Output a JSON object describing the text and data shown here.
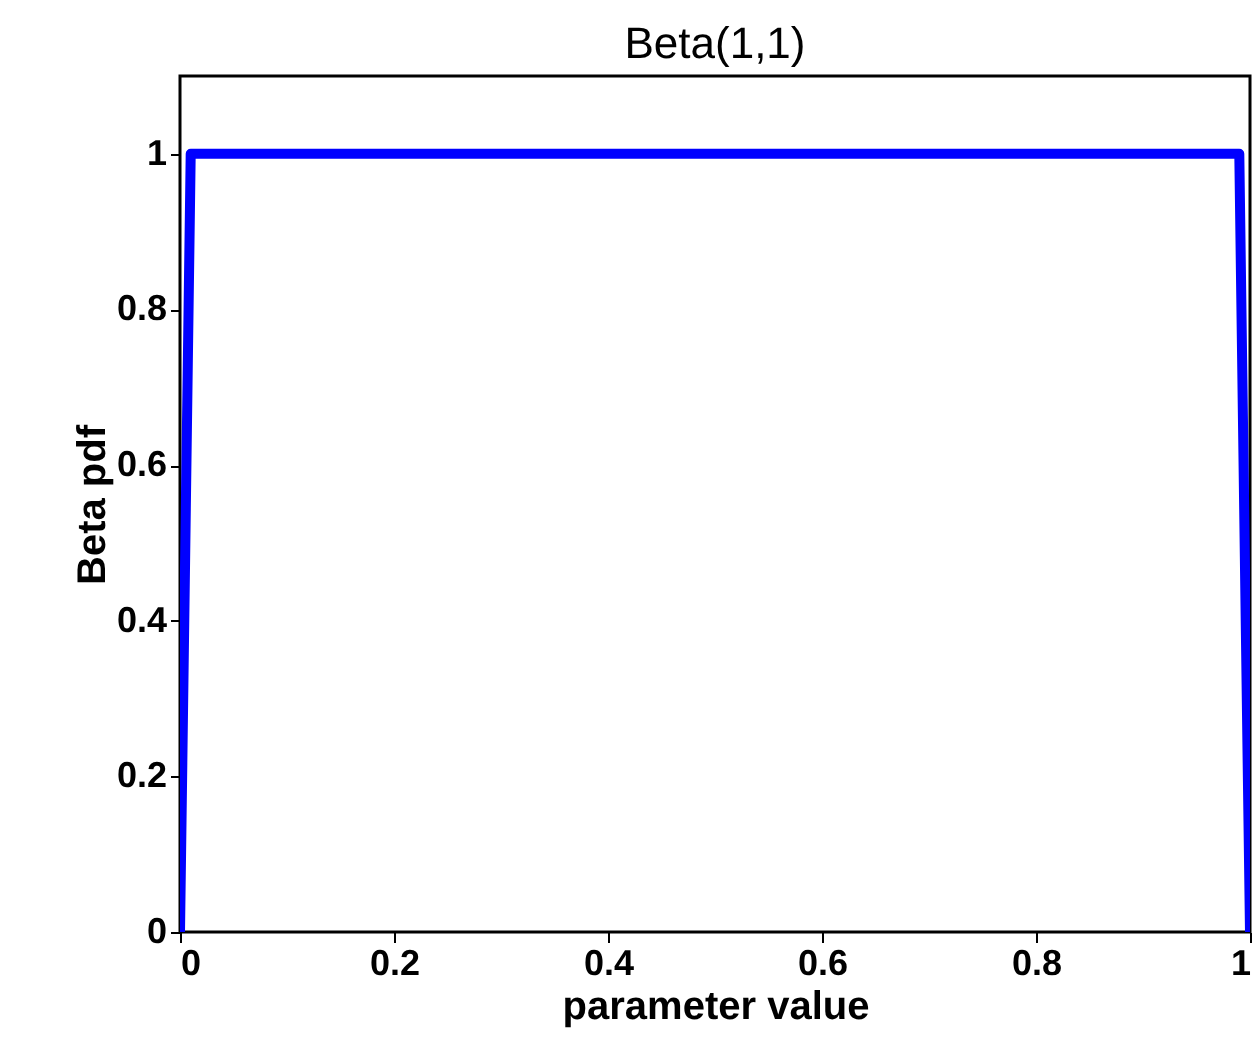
{
  "chart_data": {
    "type": "line",
    "title": "Beta(1,1)",
    "xlabel": "parameter value",
    "ylabel": "Beta pdf",
    "x": [
      0,
      0.01,
      0.99,
      1
    ],
    "series": [
      {
        "color": "#0000ff",
        "values": [
          0,
          1,
          1,
          0
        ]
      }
    ],
    "xlim": [
      0,
      1
    ],
    "ylim": [
      0,
      1.1
    ],
    "xticks": [
      0,
      0.2,
      0.4,
      0.6,
      0.8,
      1
    ],
    "yticks": [
      0,
      0.2,
      0.4,
      0.6,
      0.8,
      1
    ],
    "grid": false,
    "legend": false,
    "marker": "none",
    "line_style": "solid"
  }
}
